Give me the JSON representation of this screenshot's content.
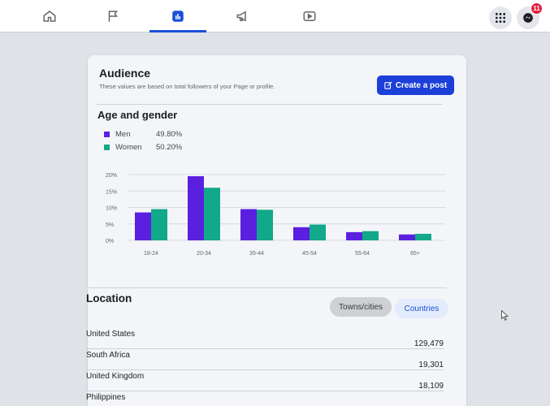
{
  "nav": {
    "tabs": [
      {
        "name": "home",
        "icon": "home-icon"
      },
      {
        "name": "pages",
        "icon": "flag-icon"
      },
      {
        "name": "insights",
        "icon": "bar-chart-icon",
        "active": true
      },
      {
        "name": "ads",
        "icon": "megaphone-icon"
      },
      {
        "name": "watch",
        "icon": "video-play-icon"
      }
    ],
    "menu_icon": "grid-menu-icon",
    "messenger_icon": "messenger-icon",
    "messenger_badge": "11"
  },
  "audience": {
    "title": "Audience",
    "subtitle": "These values are based on total followers of your Page or profile.",
    "create_post_label": "Create a post",
    "create_post_icon": "edit-icon"
  },
  "age_gender": {
    "title": "Age and gender",
    "legend": [
      {
        "name": "Men",
        "value": "49.80%",
        "color": "#5b1fe0"
      },
      {
        "name": "Women",
        "value": "50.20%",
        "color": "#12a88a"
      }
    ]
  },
  "chart_data": {
    "type": "bar",
    "categories": [
      "18-24",
      "20-34",
      "35-44",
      "45-54",
      "55-64",
      "65+"
    ],
    "series": [
      {
        "name": "Men",
        "values": [
          8.5,
          19.5,
          9.5,
          4,
          2.5,
          1.8
        ],
        "color": "#5b1fe0"
      },
      {
        "name": "Women",
        "values": [
          9.5,
          16,
          9.3,
          4.8,
          2.8,
          2
        ],
        "color": "#12a88a"
      }
    ],
    "yticks": [
      "20%",
      "15%",
      "10%",
      "5%",
      "0%"
    ],
    "ylim": [
      0,
      20
    ],
    "grid": true
  },
  "location": {
    "title": "Location",
    "tabs": {
      "towns": "Towns/cities",
      "countries": "Countries"
    },
    "rows": [
      {
        "country": "United States",
        "count": "129,479"
      },
      {
        "country": "South Africa",
        "count": "19,301"
      },
      {
        "country": "United Kingdom",
        "count": "18,109"
      },
      {
        "country": "Philippines",
        "count": ""
      }
    ]
  },
  "colors": {
    "accent": "#1b3fd8",
    "men": "#5b1fe0",
    "women": "#12a88a",
    "badge": "#e41e3f"
  }
}
